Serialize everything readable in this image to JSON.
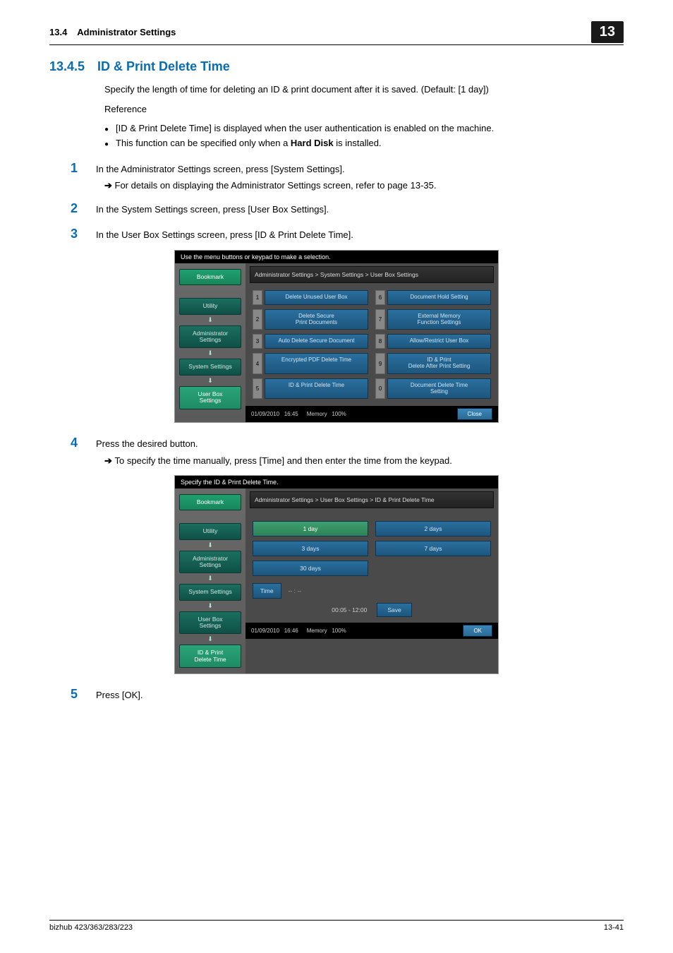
{
  "header": {
    "section_no": "13.4",
    "section_title": "Administrator Settings",
    "chapter_badge": "13"
  },
  "section": {
    "number": "13.4.5",
    "title": "ID & Print Delete Time",
    "intro": "Specify the length of time for deleting an ID & print document after it is saved. (Default: [1 day])",
    "reference_label": "Reference",
    "bullets": [
      "[ID & Print Delete Time] is displayed when the user authentication is enabled on the machine.",
      "This function can be specified only when a Hard Disk is installed."
    ]
  },
  "steps": {
    "s1": {
      "num": "1",
      "text": "In the Administrator Settings screen, press [System Settings].",
      "sub": "For details on displaying the Administrator Settings screen, refer to page 13-35."
    },
    "s2": {
      "num": "2",
      "text": "In the System Settings screen, press [User Box Settings]."
    },
    "s3": {
      "num": "3",
      "text": "In the User Box Settings screen, press [ID & Print Delete Time]."
    },
    "s4": {
      "num": "4",
      "text": "Press the desired button.",
      "sub": "To specify the time manually, press [Time] and then enter the time from the keypad."
    },
    "s5": {
      "num": "5",
      "text": "Press [OK]."
    }
  },
  "screenshot1": {
    "top_instruction": "Use the menu buttons or keypad to make a selection.",
    "breadcrumb": "Administrator Settings > System Settings > User Box Settings",
    "side_tabs": {
      "bookmark": "Bookmark",
      "utility": "Utility",
      "admin": "Administrator\nSettings",
      "system": "System Settings",
      "userbox": "User Box\nSettings"
    },
    "buttons": [
      {
        "n": "1",
        "label": "Delete Unused User Box"
      },
      {
        "n": "6",
        "label": "Document Hold Setting"
      },
      {
        "n": "2",
        "label": "Delete Secure\nPrint Documents"
      },
      {
        "n": "7",
        "label": "External Memory\nFunction Settings"
      },
      {
        "n": "3",
        "label": "Auto Delete Secure Document"
      },
      {
        "n": "8",
        "label": "Allow/Restrict User Box"
      },
      {
        "n": "4",
        "label": "Encrypted PDF Delete Time"
      },
      {
        "n": "9",
        "label": "ID & Print\nDelete After Print Setting"
      },
      {
        "n": "5",
        "label": "ID & Print Delete Time"
      },
      {
        "n": "0",
        "label": "Document Delete Time\nSetting"
      }
    ],
    "status_date": "01/09/2010",
    "status_time": "16:45",
    "status_mem": "Memory",
    "status_pct": "100%",
    "close_btn": "Close"
  },
  "screenshot2": {
    "top_instruction": "Specify the ID & Print Delete Time.",
    "breadcrumb": "Administrator Settings > User Box Settings > ID & Print Delete Time",
    "side_tabs": {
      "bookmark": "Bookmark",
      "utility": "Utility",
      "admin": "Administrator\nSettings",
      "system": "System Settings",
      "userbox": "User Box\nSettings",
      "idprint": "ID & Print\nDelete Time"
    },
    "options": {
      "d1": "1 day",
      "d2": "2 days",
      "d3": "3 days",
      "d7": "7 days",
      "d30": "30 days",
      "time": "Time",
      "time_placeholder": "-- : --",
      "range": "00:05  -  12:00",
      "save": "Save"
    },
    "status_date": "01/09/2010",
    "status_time": "16:46",
    "status_mem": "Memory",
    "status_pct": "100%",
    "ok_btn": "OK"
  },
  "footer": {
    "left": "bizhub 423/363/283/223",
    "right": "13-41"
  },
  "colors": {
    "accent_blue": "#0b6bb3",
    "panel_green": "#1fa06f",
    "panel_teal": "#1b6f5f",
    "panel_blue": "#2a6f9e",
    "badge_bg": "#1a1a1a"
  }
}
